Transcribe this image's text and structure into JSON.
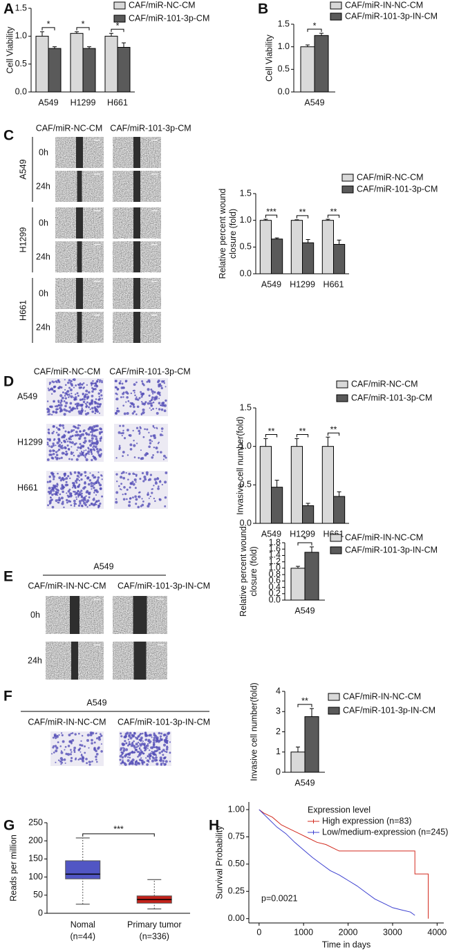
{
  "panels": {
    "letters": [
      "A",
      "B",
      "C",
      "D",
      "E",
      "F",
      "G",
      "H"
    ],
    "C": {
      "columns": [
        "CAF/miR-NC-CM",
        "CAF/miR-101-3p-CM"
      ],
      "cell_lines": [
        "A549",
        "H1299",
        "H661"
      ],
      "times": [
        "0h",
        "24h"
      ]
    },
    "D": {
      "columns": [
        "CAF/miR-NC-CM",
        "CAF/miR-101-3p-CM"
      ],
      "cell_lines": [
        "A549",
        "H1299",
        "H661"
      ]
    },
    "E": {
      "group": "A549",
      "columns": [
        "CAF/miR-IN-NC-CM",
        "CAF/miR-101-3p-IN-CM"
      ],
      "times": [
        "0h",
        "24h"
      ]
    },
    "F": {
      "group": "A549",
      "columns": [
        "CAF/miR-IN-NC-CM",
        "CAF/miR-101-3p-IN-CM"
      ]
    }
  },
  "chart_data": [
    {
      "type": "bar",
      "ylabel": "Cell Viability",
      "categories": [
        "A549",
        "H1299",
        "H661"
      ],
      "series": [
        {
          "name": "CAF/miR-NC-CM",
          "color": "#d9d9d9",
          "values": [
            1.0,
            1.05,
            1.0
          ],
          "errors": [
            0.08,
            0.03,
            0.05
          ]
        },
        {
          "name": "CAF/miR-101-3p-CM",
          "color": "#5a5a5a",
          "values": [
            0.78,
            0.78,
            0.8
          ],
          "errors": [
            0.03,
            0.03,
            0.08
          ]
        }
      ],
      "annotations": [
        "*",
        "*",
        "*"
      ],
      "ylim": [
        0,
        1.5
      ],
      "yticks": [
        {
          "value": 0,
          "label": "0.0"
        },
        0.5,
        {
          "value": 1,
          "label": "1.0"
        },
        1.5
      ]
    },
    {
      "type": "bar",
      "ylabel": "Cell Viability",
      "categories": [
        "A549"
      ],
      "series": [
        {
          "name": "CAF/miR-IN-NC-CM",
          "color": "#d9d9d9",
          "values": [
            1.0
          ],
          "errors": [
            0.04
          ]
        },
        {
          "name": "CAF/miR-101-3p-IN-CM",
          "color": "#5a5a5a",
          "values": [
            1.25
          ],
          "errors": [
            0.05
          ]
        }
      ],
      "annotations": [
        "*"
      ],
      "ylim": [
        0,
        1.5
      ],
      "yticks": [
        {
          "value": 0,
          "label": "0.0"
        },
        0.5,
        {
          "value": 1,
          "label": "1.0"
        },
        1.5
      ]
    },
    {
      "type": "bar",
      "ylabel": [
        "Relative percent wound",
        "closure (fold)"
      ],
      "categories": [
        "A549",
        "H1299",
        "H661"
      ],
      "series": [
        {
          "name": "CAF/miR-NC-CM",
          "color": "#d9d9d9",
          "values": [
            1.0,
            1.0,
            1.0
          ],
          "errors": [
            0.02,
            0.01,
            0.02
          ]
        },
        {
          "name": "CAF/miR-101-3p-CM",
          "color": "#5a5a5a",
          "values": [
            0.65,
            0.58,
            0.55
          ],
          "errors": [
            0.02,
            0.06,
            0.08
          ]
        }
      ],
      "annotations": [
        "***",
        "**",
        "**"
      ],
      "ylim": [
        0,
        1.5
      ],
      "yticks": [
        {
          "value": 0,
          "label": "0.0"
        },
        0.5,
        {
          "value": 1,
          "label": "1.0"
        },
        1.5
      ]
    },
    {
      "type": "bar",
      "ylabel": "Invasive cell number(fold)",
      "categories": [
        "A549",
        "H1299",
        "H661"
      ],
      "series": [
        {
          "name": "CAF/miR-NC-CM",
          "color": "#d9d9d9",
          "values": [
            1.0,
            1.0,
            1.0
          ],
          "errors": [
            0.1,
            0.1,
            0.12
          ]
        },
        {
          "name": "CAF/miR-101-3p-CM",
          "color": "#5a5a5a",
          "values": [
            0.47,
            0.23,
            0.35
          ],
          "errors": [
            0.09,
            0.03,
            0.06
          ]
        }
      ],
      "annotations": [
        "**",
        "**",
        "**"
      ],
      "ylim": [
        0,
        1.5
      ],
      "yticks": [
        {
          "value": 0,
          "label": "0.0"
        },
        0.5,
        {
          "value": 1,
          "label": "1.0"
        },
        1.5
      ]
    },
    {
      "type": "bar",
      "ylabel": [
        "Relative percent wound",
        "closure (fold)"
      ],
      "categories": [
        "A549"
      ],
      "series": [
        {
          "name": "CAF/miR-IN-NC-CM",
          "color": "#d9d9d9",
          "values": [
            1.0
          ],
          "errors": [
            0.06
          ]
        },
        {
          "name": "CAF/miR-101-3p-IN-CM",
          "color": "#5a5a5a",
          "values": [
            1.5
          ],
          "errors": [
            0.17
          ]
        }
      ],
      "annotations": [
        "*"
      ],
      "ylim": [
        0,
        1.8
      ],
      "yticks": [
        {
          "value": 0,
          "label": "0.0"
        },
        0.2,
        0.4,
        0.6,
        0.8,
        {
          "value": 1,
          "label": "1.0"
        },
        1.2,
        1.4,
        1.6,
        1.8
      ]
    },
    {
      "type": "bar",
      "ylabel": "Invasive cell number(fold)",
      "categories": [
        "A549"
      ],
      "series": [
        {
          "name": "CAF/miR-IN-NC-CM",
          "color": "#d9d9d9",
          "values": [
            1.0
          ],
          "errors": [
            0.25
          ]
        },
        {
          "name": "CAF/miR-101-3p-IN-CM",
          "color": "#5a5a5a",
          "values": [
            2.75
          ],
          "errors": [
            0.4
          ]
        }
      ],
      "annotations": [
        "**"
      ],
      "ylim": [
        0,
        4
      ],
      "yticks": [
        0,
        1,
        2,
        3,
        4
      ]
    },
    {
      "type": "box",
      "ylabel": "Reads per million",
      "categories": [
        "Nomal",
        "Primary tumor"
      ],
      "sample_sizes": [
        "(n=44)",
        "(n=336)"
      ],
      "boxes": [
        {
          "min": 25,
          "q1": 95,
          "median": 108,
          "q3": 145,
          "max": 208,
          "color": "#5156c4"
        },
        {
          "min": 12,
          "q1": 28,
          "median": 38,
          "q3": 48,
          "max": 93,
          "color": "#c4221a"
        }
      ],
      "annotations": [
        "***"
      ],
      "ylim": [
        0,
        250
      ],
      "yticks": [
        0,
        50,
        100,
        150,
        200,
        250
      ]
    },
    {
      "type": "line",
      "xlabel": "Time in days",
      "ylabel": "Survival Probability",
      "legend_title": "Expression level",
      "annotation": "p=0.0021",
      "series": [
        {
          "name": "High expression (n=83)",
          "color": "#d2291d",
          "x": [
            0,
            100,
            300,
            500,
            700,
            900,
            1100,
            1300,
            1500,
            1700,
            1800,
            2500,
            3500,
            3500,
            3800,
            3800
          ],
          "values": [
            1.0,
            0.97,
            0.93,
            0.86,
            0.82,
            0.78,
            0.74,
            0.7,
            0.68,
            0.64,
            0.62,
            0.62,
            0.62,
            0.41,
            0.41,
            0.0
          ]
        },
        {
          "name": "Low/medium-expression (n=245)",
          "color": "#3b3fd0",
          "x": [
            0,
            200,
            400,
            600,
            800,
            1000,
            1200,
            1400,
            1600,
            1800,
            2000,
            2200,
            2400,
            2600,
            2800,
            3000,
            3200,
            3400,
            3500
          ],
          "values": [
            1.0,
            0.92,
            0.84,
            0.78,
            0.7,
            0.63,
            0.56,
            0.5,
            0.44,
            0.4,
            0.35,
            0.3,
            0.24,
            0.18,
            0.14,
            0.1,
            0.08,
            0.06,
            0.03
          ]
        }
      ],
      "xlim": [
        -230,
        4150
      ],
      "xticks": [
        0,
        1000,
        2000,
        3000,
        4000
      ],
      "ylim": [
        -0.04,
        1.07
      ],
      "yticks": [
        {
          "value": 0,
          "label": "0.00"
        },
        0.25,
        {
          "value": 0.5,
          "label": "0.50"
        },
        0.75,
        {
          "value": 1,
          "label": "1.00"
        }
      ]
    }
  ]
}
